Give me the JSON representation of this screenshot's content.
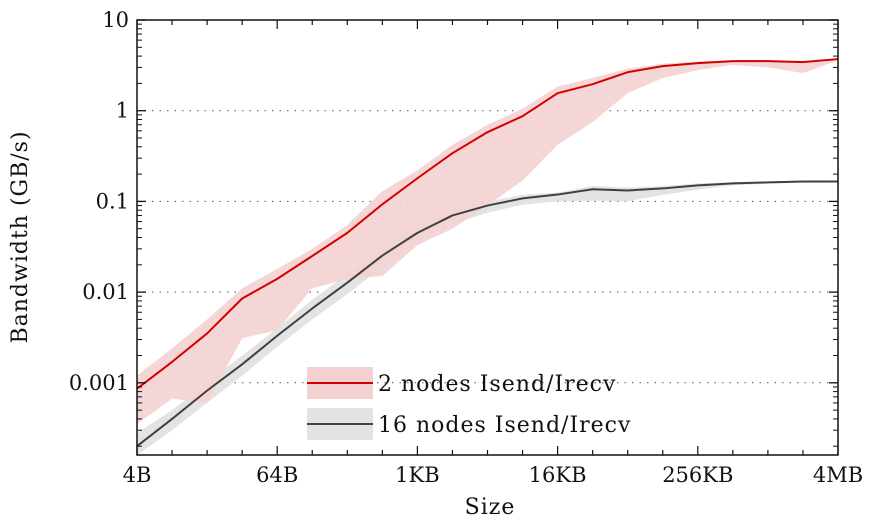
{
  "chart_data": {
    "type": "line",
    "title": "",
    "xlabel": "Size",
    "ylabel": "Bandwidth (GB/s)",
    "xscale": "log2",
    "yscale": "log10",
    "ylim": [
      0.00016,
      10
    ],
    "x": [
      "4B",
      "8B",
      "16B",
      "32B",
      "64B",
      "128B",
      "256B",
      "512B",
      "1KB",
      "2KB",
      "4KB",
      "8KB",
      "16KB",
      "32KB",
      "64KB",
      "128KB",
      "256KB",
      "512KB",
      "1MB",
      "2MB",
      "4MB"
    ],
    "x_ticks": [
      "4B",
      "64B",
      "1KB",
      "16KB",
      "256KB",
      "4MB"
    ],
    "y_ticks": [
      {
        "value": 10,
        "label": "10"
      },
      {
        "value": 1,
        "label": "1"
      },
      {
        "value": 0.1,
        "label": "0.1"
      },
      {
        "value": 0.01,
        "label": "0.01"
      },
      {
        "value": 0.001,
        "label": "0.001"
      }
    ],
    "grid": "horizontal dotted at major y ticks",
    "legend_position": "bottom-center",
    "series": [
      {
        "name": "2 nodes Isend/Irecv",
        "color": "#d40000",
        "band_color": "#f4d2d2",
        "values": [
          0.00086,
          0.0017,
          0.0035,
          0.0085,
          0.014,
          0.025,
          0.045,
          0.093,
          0.18,
          0.34,
          0.58,
          0.87,
          1.56,
          1.96,
          2.66,
          3.1,
          3.35,
          3.52,
          3.52,
          3.43,
          3.71
        ],
        "lower": [
          0.00035,
          0.00067,
          0.0006,
          0.0031,
          0.0038,
          0.011,
          0.014,
          0.015,
          0.033,
          0.05,
          0.09,
          0.17,
          0.42,
          0.75,
          1.56,
          2.29,
          2.8,
          3.2,
          3.0,
          2.6,
          3.6
        ],
        "upper": [
          0.0012,
          0.0024,
          0.005,
          0.011,
          0.018,
          0.03,
          0.055,
          0.13,
          0.22,
          0.42,
          0.7,
          1.05,
          1.85,
          2.3,
          2.9,
          3.3,
          3.5,
          3.6,
          3.6,
          3.55,
          3.8
        ]
      },
      {
        "name": "16 nodes Isend/Irecv",
        "color": "#404040",
        "band_color": "#e3e3e3",
        "values": [
          0.0002,
          0.0004,
          0.00082,
          0.0016,
          0.0033,
          0.0066,
          0.0127,
          0.0253,
          0.045,
          0.07,
          0.09,
          0.108,
          0.119,
          0.136,
          0.132,
          0.139,
          0.15,
          0.158,
          0.162,
          0.166,
          0.166
        ],
        "lower": [
          0.00013,
          0.0003,
          0.0006,
          0.0012,
          0.0025,
          0.005,
          0.0095,
          0.019,
          0.036,
          0.056,
          0.075,
          0.092,
          0.1,
          0.102,
          0.1,
          0.118,
          0.135,
          0.15,
          0.157,
          0.16,
          0.162
        ],
        "upper": [
          0.00028,
          0.0005,
          0.001,
          0.002,
          0.004,
          0.0082,
          0.016,
          0.031,
          0.054,
          0.082,
          0.1,
          0.118,
          0.125,
          0.148,
          0.142,
          0.148,
          0.158,
          0.163,
          0.166,
          0.169,
          0.17
        ]
      }
    ]
  }
}
